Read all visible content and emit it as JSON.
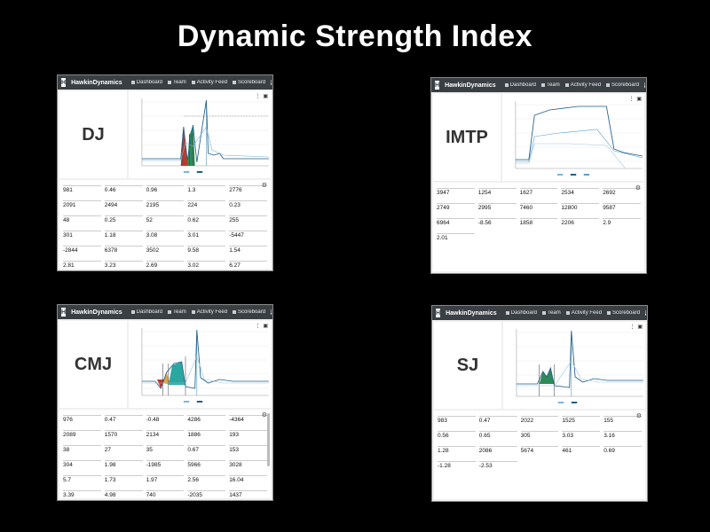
{
  "title": "Dynamic Strength Index",
  "nav": {
    "brand": "HawkinDynamics",
    "logo": "H",
    "items": [
      "Dashboard",
      "Team",
      "Activity Feed",
      "Scoreboard"
    ],
    "info": "i"
  },
  "panels": {
    "dj": {
      "label": "DJ",
      "values": [
        "981",
        "0.46",
        "0.96",
        "1.3",
        "2776",
        "2091",
        "2494",
        "2195",
        "224",
        "0.23",
        "48",
        "0.25",
        "52",
        "0.62",
        "255",
        "301",
        "1.18",
        "3.08",
        "3.01",
        "-5447",
        "-2844",
        "6378",
        "3502",
        "9.58",
        "1.54",
        "2.81",
        "3.23",
        "2.69",
        "3.02",
        "6.27"
      ]
    },
    "imtp": {
      "label": "IMTP",
      "values": [
        "3947",
        "1254",
        "1627",
        "2534",
        "2692",
        "2749",
        "2995",
        "7460",
        "12800",
        "9587",
        "6964",
        "-8.56",
        "1858",
        "2206",
        "2.9",
        "2.01"
      ]
    },
    "cmj": {
      "label": "CMJ",
      "values": [
        "976",
        "0.47",
        "-0.48",
        "4286",
        "-4364",
        "2089",
        "1570",
        "2134",
        "1886",
        "193",
        "38",
        "27",
        "35",
        "0.67",
        "153",
        "304",
        "1.98",
        "-1985",
        "5966",
        "3028",
        "5.7",
        "1.73",
        "1.97",
        "2.56",
        "16.04",
        "3.39",
        "4.98",
        "740",
        "-2035",
        "1437"
      ]
    },
    "sj": {
      "label": "SJ",
      "values": [
        "983",
        "0.47",
        "2022",
        "1525",
        "155",
        "0.56",
        "0.65",
        "305",
        "3.03",
        "3.16",
        "1.28",
        "2086",
        "5674",
        "461",
        "0.69",
        "-1.28",
        "-2.53"
      ]
    }
  },
  "icons": {
    "gear": "gear-icon",
    "camera": "camera-icon",
    "menu": "more-vert-icon"
  }
}
